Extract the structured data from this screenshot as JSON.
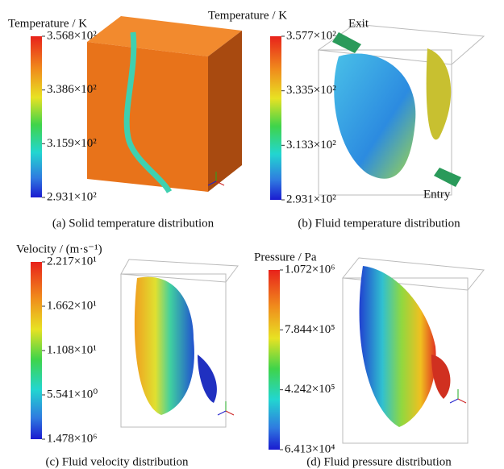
{
  "panels": [
    {
      "colorbar_title": "Temperature / K",
      "colorbar_labels": [
        "3.568×10²",
        "3.386×10²",
        "3.159×10²",
        "2.931×10²"
      ],
      "caption": "(a) Solid temperature distribution"
    },
    {
      "colorbar_title": "Temperature / K",
      "colorbar_labels": [
        "3.577×10²",
        "3.335×10²",
        "3.133×10²",
        "2.931×10²"
      ],
      "caption": "(b) Fluid temperature distribution",
      "annotations": [
        "Exit",
        "Entry"
      ]
    },
    {
      "colorbar_title": "Velocity / (m·s⁻¹)",
      "colorbar_labels": [
        "2.217×10¹",
        "1.662×10¹",
        "1.108×10¹",
        "5.541×10⁰",
        "1.478×10⁶"
      ],
      "caption": "(c) Fluid velocity distribution"
    },
    {
      "colorbar_title": "Pressure / Pa",
      "colorbar_labels": [
        "1.072×10⁶",
        "7.844×10⁵",
        "4.242×10⁵",
        "6.413×10⁴"
      ],
      "caption": "(d) Fluid pressure distribution"
    }
  ]
}
